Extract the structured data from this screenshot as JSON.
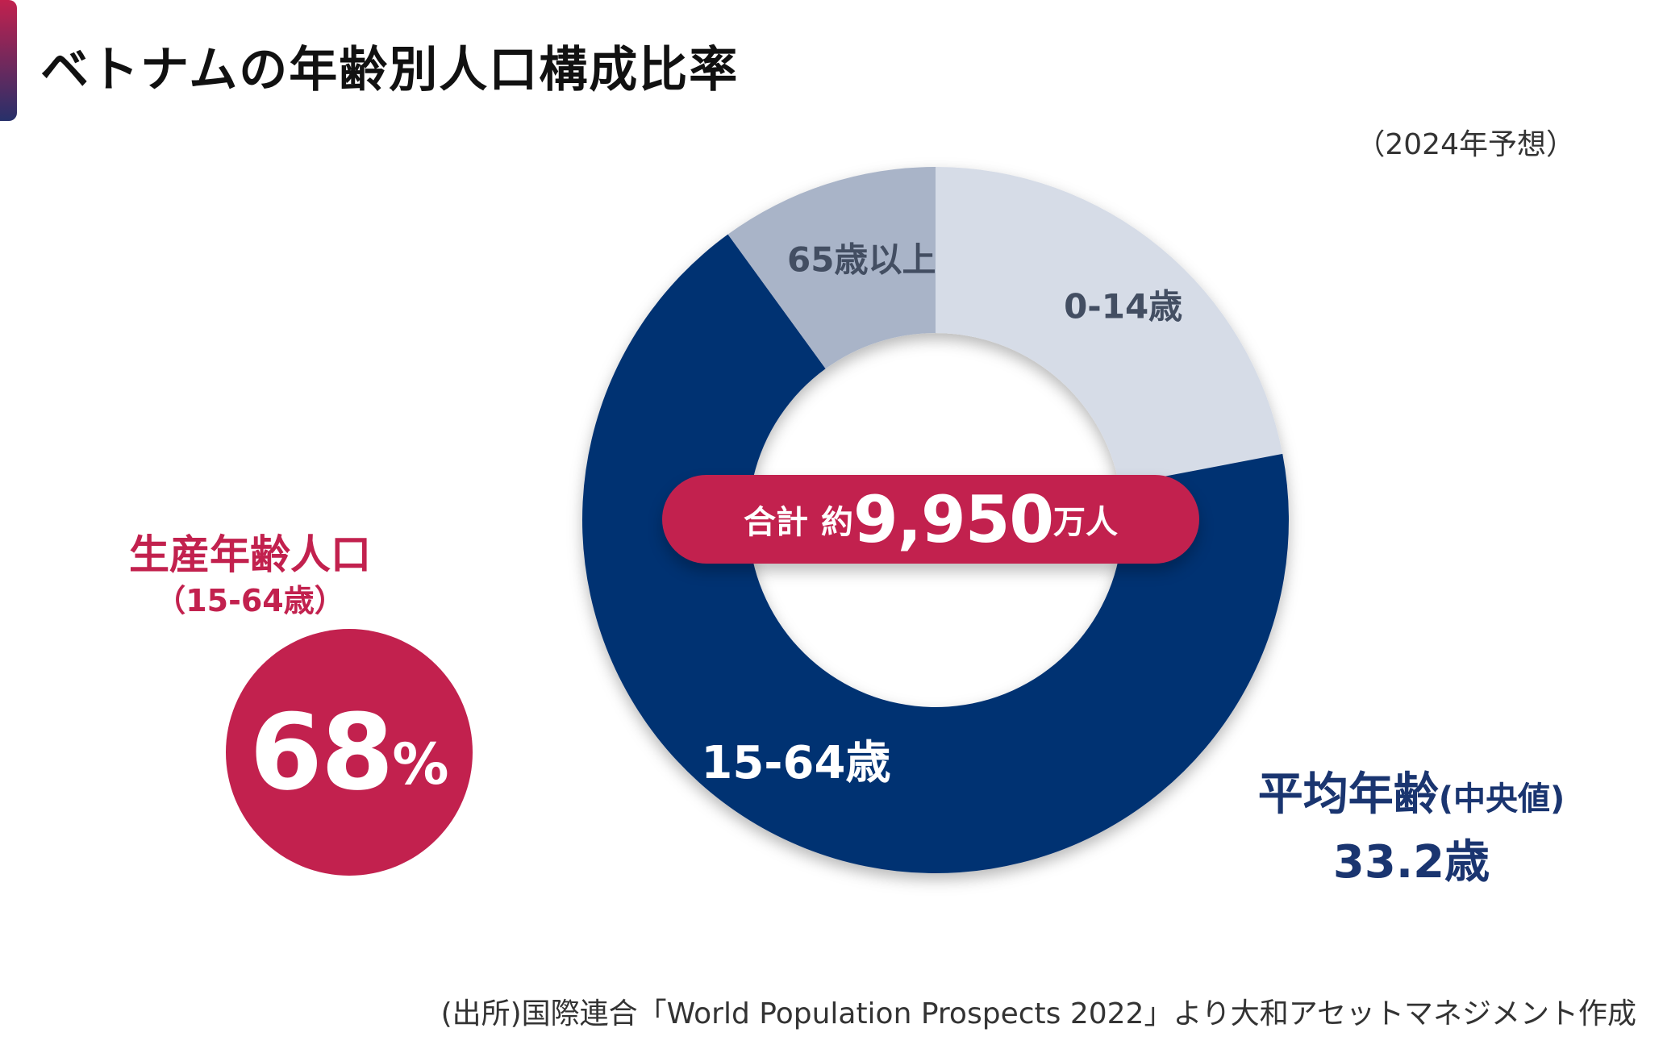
{
  "title": "ベトナムの年齢別人口構成比率",
  "year_note": "（2024年予想）",
  "total": {
    "prefix": "合計",
    "approx": "約",
    "value": "9,950",
    "unit": "万人"
  },
  "working_age": {
    "label": "生産年齢人口",
    "sublabel": "（15-64歳）",
    "value": "68",
    "percent_sign": "%"
  },
  "median_age": {
    "label": "平均年齢",
    "sublabel": "(中央値)",
    "value": "33.2歳"
  },
  "source": "(出所)国際連合「World Population Prospects 2022」より大和アセットマネジメント作成",
  "chart_data": {
    "type": "pie",
    "subtype": "donut",
    "categories": [
      "0-14歳",
      "15-64歳",
      "65歳以上"
    ],
    "values": [
      22,
      68,
      10
    ],
    "colors": [
      "#d6dce7",
      "#043272",
      "#a9b4c8"
    ],
    "label_colors": [
      "#434e62",
      "#ffffff",
      "#434e62"
    ],
    "start_angle_deg": 0,
    "direction": "clockwise"
  }
}
